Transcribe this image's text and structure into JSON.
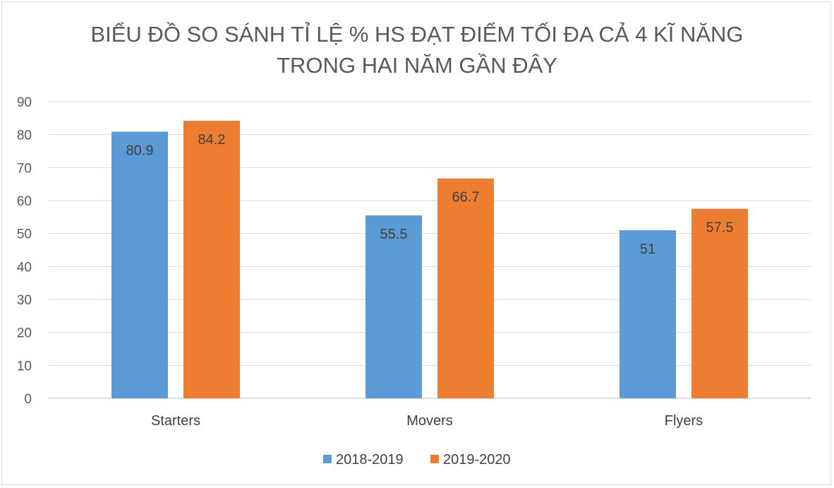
{
  "chart_data": {
    "type": "bar",
    "title_lines": [
      "BIỂU ĐỒ SO SÁNH TỈ LỆ % HS ĐẠT ĐIỂM TỐI ĐA CẢ 4 KĨ NĂNG",
      "TRONG HAI NĂM GẦN ĐÂY"
    ],
    "categories": [
      "Starters",
      "Movers",
      "Flyers"
    ],
    "series": [
      {
        "name": "2018-2019",
        "values": [
          80.9,
          55.5,
          51
        ],
        "labels": [
          "80.9",
          "55.5",
          "51"
        ],
        "color": "#5b9bd5"
      },
      {
        "name": "2019-2020",
        "values": [
          84.2,
          66.7,
          57.5
        ],
        "labels": [
          "84.2",
          "66.7",
          "57.5"
        ],
        "color": "#ed7d31"
      }
    ],
    "y_ticks": [
      "0",
      "10",
      "20",
      "30",
      "40",
      "50",
      "60",
      "70",
      "80",
      "90"
    ],
    "ylim": [
      0,
      90
    ],
    "grid": true,
    "legend_position": "bottom",
    "xlabel": "",
    "ylabel": ""
  }
}
